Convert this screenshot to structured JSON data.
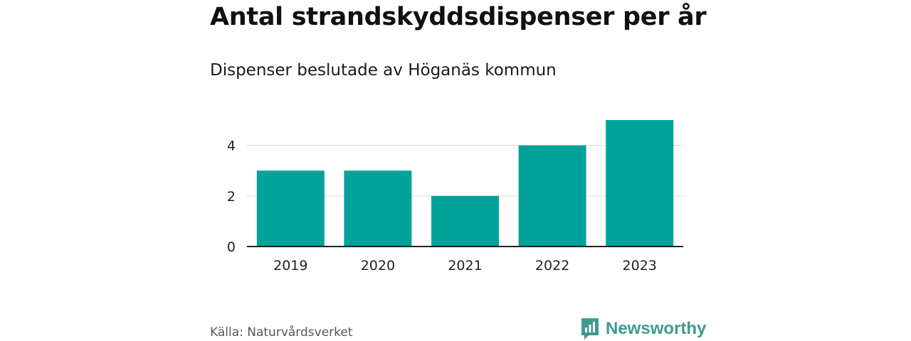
{
  "header": {
    "title": "Antal strandskyddsdispenser per år",
    "subtitle": "Dispenser beslutade av Höganäs kommun"
  },
  "footer": {
    "source": "Källa: Naturvårdsverket",
    "brand": "Newsworthy"
  },
  "colors": {
    "bar": "#00a39a",
    "brand": "#3f9a8e",
    "grid": "#dddddd",
    "axis": "#222222"
  },
  "chart_data": {
    "type": "bar",
    "title": "Antal strandskyddsdispenser per år",
    "subtitle": "Dispenser beslutade av Höganäs kommun",
    "categories": [
      "2019",
      "2020",
      "2021",
      "2022",
      "2023"
    ],
    "values": [
      3,
      3,
      2,
      4,
      5
    ],
    "xlabel": "",
    "ylabel": "",
    "ylim": [
      0,
      5
    ],
    "yticks": [
      0,
      2,
      4
    ],
    "grid": true,
    "legend": "none"
  }
}
